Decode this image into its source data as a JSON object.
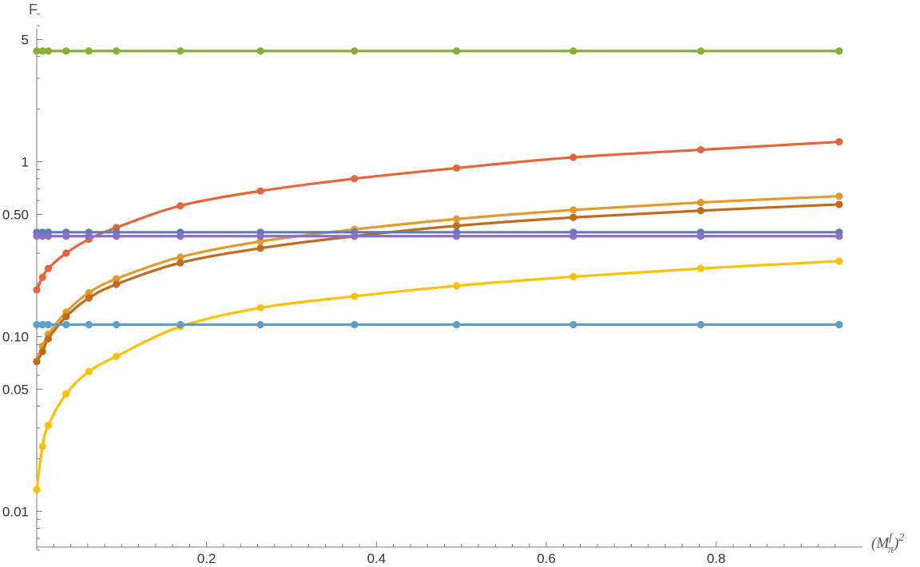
{
  "chart_data": {
    "type": "line",
    "xlabel": "(M^f_π)^2",
    "ylabel": "F",
    "xlim": [
      0.0,
      0.95
    ],
    "ylim": [
      0.006,
      7.0
    ],
    "yscale": "log",
    "grid": false,
    "x_ticks": [
      0.2,
      0.4,
      0.6,
      0.8
    ],
    "x_tick_labels": [
      "0.2",
      "0.4",
      "0.6",
      "0.8"
    ],
    "y_ticks": [
      0.01,
      0.05,
      0.1,
      0.5,
      1,
      5
    ],
    "y_tick_labels": [
      "0.01",
      "0.05",
      "0.10",
      "0.50",
      "1",
      "5"
    ],
    "x_points": [
      0.0,
      0.0068,
      0.0136,
      0.0346,
      0.0614,
      0.0938,
      0.1691,
      0.2634,
      0.3741,
      0.4943,
      0.6318,
      0.7818,
      0.9448
    ],
    "series": [
      {
        "color": "#8AAE34",
        "values": [
          4.3,
          4.3,
          4.3,
          4.3,
          4.3,
          4.3,
          4.3,
          4.3,
          4.3,
          4.3,
          4.3,
          4.3,
          4.3
        ]
      },
      {
        "color": "#E8643A",
        "values": [
          0.185,
          0.218,
          0.245,
          0.3,
          0.36,
          0.42,
          0.56,
          0.68,
          0.8,
          0.92,
          1.06,
          1.17,
          1.3
        ]
      },
      {
        "color": "#E39B2E",
        "values": [
          0.072,
          0.088,
          0.103,
          0.138,
          0.178,
          0.214,
          0.285,
          0.35,
          0.41,
          0.47,
          0.53,
          0.585,
          0.635
        ]
      },
      {
        "color": "#C26A1E",
        "values": [
          0.072,
          0.082,
          0.097,
          0.13,
          0.166,
          0.199,
          0.264,
          0.32,
          0.375,
          0.43,
          0.48,
          0.525,
          0.57
        ]
      },
      {
        "color": "#5D7DBA",
        "values": [
          0.395,
          0.395,
          0.395,
          0.395,
          0.395,
          0.395,
          0.395,
          0.395,
          0.395,
          0.395,
          0.395,
          0.395,
          0.395
        ]
      },
      {
        "color": "#8B6FC2",
        "values": [
          0.375,
          0.375,
          0.375,
          0.375,
          0.375,
          0.375,
          0.375,
          0.375,
          0.375,
          0.375,
          0.375,
          0.375,
          0.375
        ]
      },
      {
        "color": "#FFC107",
        "values": [
          0.0133,
          0.0235,
          0.031,
          0.047,
          0.063,
          0.077,
          0.114,
          0.146,
          0.17,
          0.195,
          0.22,
          0.245,
          0.27
        ]
      },
      {
        "color": "#5E9FC8",
        "values": [
          0.117,
          0.117,
          0.117,
          0.117,
          0.117,
          0.117,
          0.117,
          0.117,
          0.117,
          0.117,
          0.117,
          0.117,
          0.117
        ]
      }
    ]
  }
}
